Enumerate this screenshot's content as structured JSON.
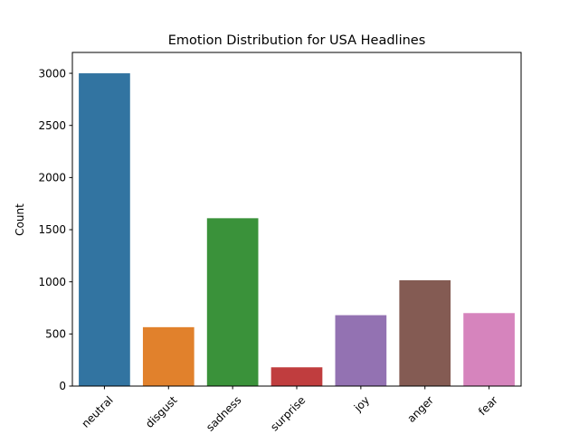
{
  "chart_data": {
    "type": "bar",
    "title": "Emotion Distribution for USA Headlines",
    "xlabel": "",
    "ylabel": "Count",
    "categories": [
      "neutral",
      "disgust",
      "sadness",
      "surprise",
      "joy",
      "anger",
      "fear"
    ],
    "values": [
      3000,
      565,
      1610,
      180,
      680,
      1015,
      700
    ],
    "colors": [
      "#3274a1",
      "#e1812c",
      "#3a923a",
      "#c03d3e",
      "#9372b2",
      "#845b53",
      "#d684bd"
    ],
    "ylim": [
      0,
      3200
    ],
    "yticks": [
      0,
      500,
      1000,
      1500,
      2000,
      2500,
      3000
    ],
    "grid": false,
    "legend": "none"
  }
}
